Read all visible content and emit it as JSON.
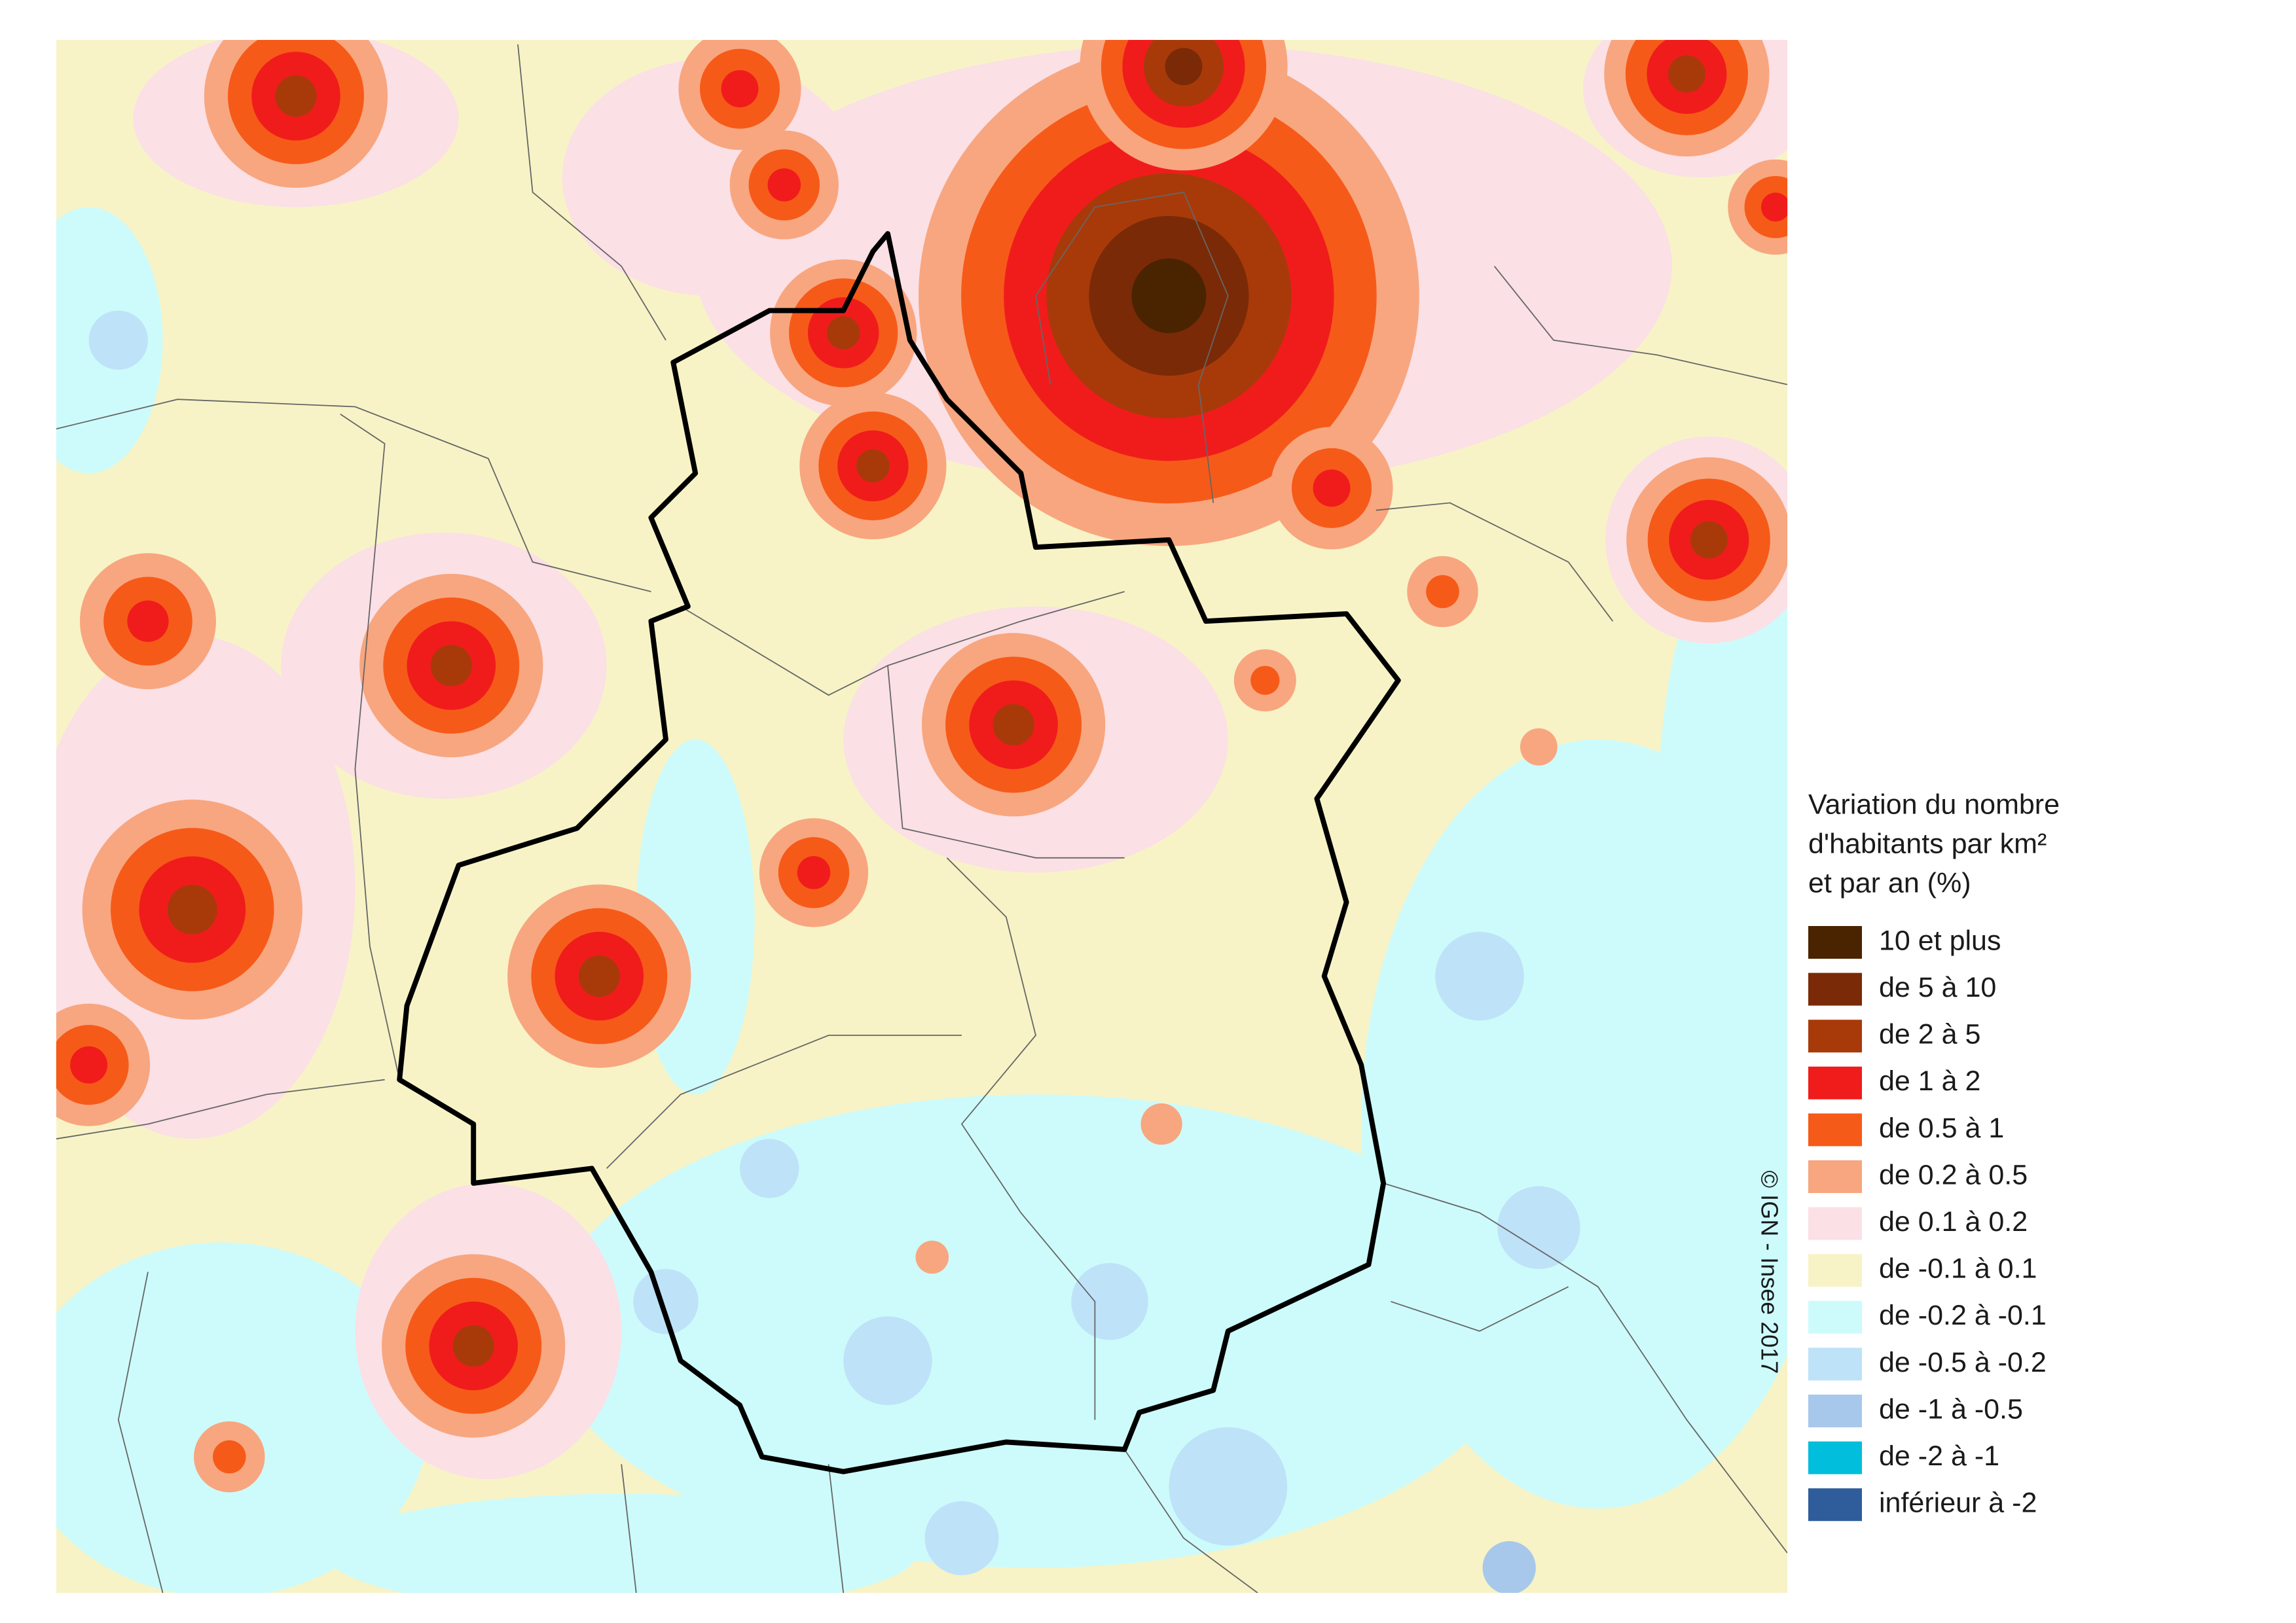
{
  "legend": {
    "title_lines": [
      "Variation du nombre",
      "d'habitants par km²",
      "et par an (%)"
    ],
    "items": [
      {
        "label": "10 et plus",
        "color": "#4a2300"
      },
      {
        "label": "de 5 à 10",
        "color": "#7a2a06"
      },
      {
        "label": "de 2 à 5",
        "color": "#a83a0a"
      },
      {
        "label": "de 1 à 2",
        "color": "#f01c1c"
      },
      {
        "label": "de 0.5 à 1",
        "color": "#f65a18"
      },
      {
        "label": "de 0.2 à 0.5",
        "color": "#f8a67f"
      },
      {
        "label": "de 0.1 à 0.2",
        "color": "#fbe0e6"
      },
      {
        "label": "de -0.1 à 0.1",
        "color": "#f7f3c6"
      },
      {
        "label": "de -0.2 à -0.1",
        "color": "#cdfbfb"
      },
      {
        "label": "de -0.5 à -0.2",
        "color": "#bee2f8"
      },
      {
        "label": "de -1 à -0.5",
        "color": "#a7c8ea"
      },
      {
        "label": "de -2 à -1",
        "color": "#00bedc"
      },
      {
        "label": "inférieur à -2",
        "color": "#2f5d9c"
      }
    ]
  },
  "credit": "© IGN - Insee 2017"
}
